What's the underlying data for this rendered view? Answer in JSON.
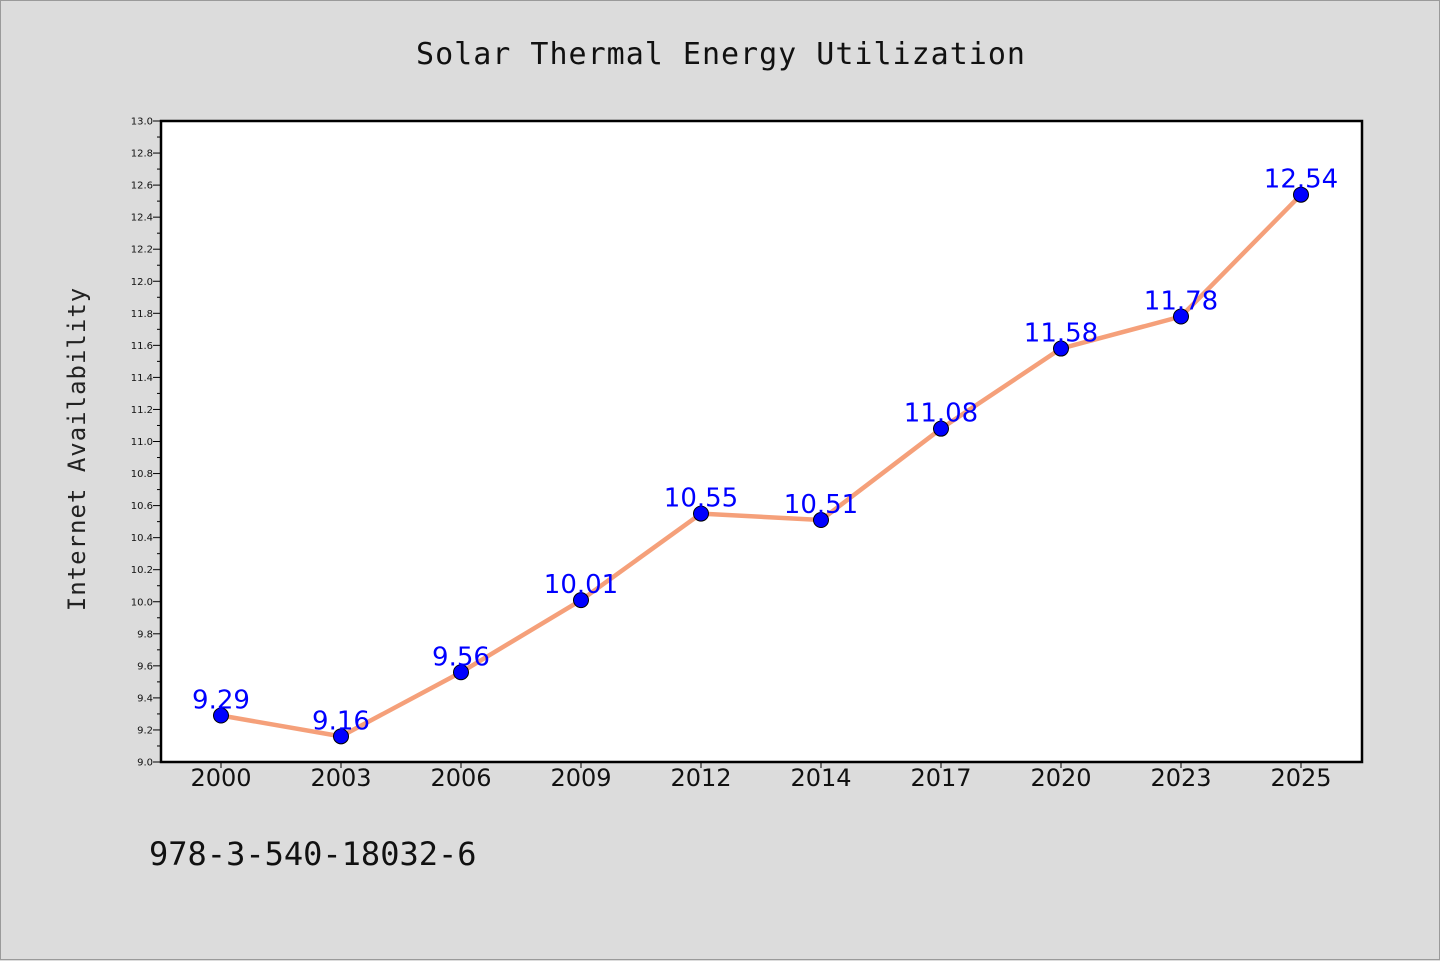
{
  "chart_data": {
    "type": "line",
    "title": "Solar Thermal Energy Utilization",
    "xlabel": "",
    "ylabel": "Internet Availability",
    "categories": [
      "2000",
      "2003",
      "2006",
      "2009",
      "2012",
      "2014",
      "2017",
      "2020",
      "2023",
      "2025"
    ],
    "series": [
      {
        "values": [
          9.29,
          9.16,
          9.56,
          10.01,
          10.55,
          10.51,
          11.08,
          11.58,
          11.78,
          12.54
        ],
        "data_labels": [
          "9.29",
          "9.16",
          "9.56",
          "10.01",
          "10.55",
          "10.51",
          "11.08",
          "11.58",
          "11.78",
          "12.54"
        ],
        "line_color": "#f5a07a",
        "marker_color": "#0000ff"
      }
    ],
    "ylim": [
      9.0,
      13.0
    ],
    "yticks": [
      "9.0",
      "9.2",
      "9.4",
      "9.6",
      "9.8",
      "10.0",
      "10.2",
      "10.4",
      "10.6",
      "10.8",
      "11.0",
      "11.2",
      "11.4",
      "11.6",
      "11.8",
      "12.0",
      "12.2",
      "12.4",
      "12.6",
      "12.8",
      "13.0"
    ],
    "grid": false,
    "legend": "none",
    "background_color": "#dcdcdc",
    "plot_background_color": "#ffffff",
    "label_color": "#0000ff"
  },
  "footer": {
    "text": "978-3-540-18032-6"
  }
}
